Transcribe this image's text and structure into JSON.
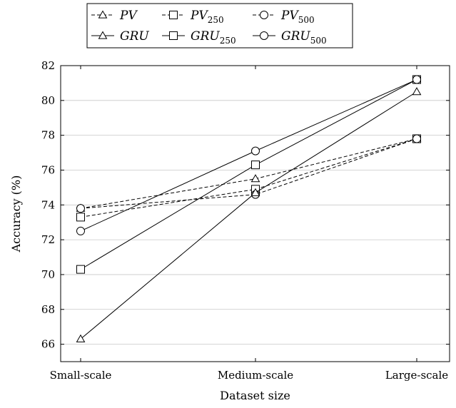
{
  "chart_data": {
    "type": "line",
    "title": "",
    "xlabel": "Dataset size",
    "ylabel": "Accuracy (%)",
    "categories": [
      "Small-scale",
      "Medium-scale",
      "Large-scale"
    ],
    "ylim": [
      65,
      82
    ],
    "yticks": [
      66,
      68,
      70,
      72,
      74,
      76,
      78,
      80,
      82
    ],
    "grid": "horizontal",
    "legend_position": "top",
    "series": [
      {
        "name": "PV",
        "base": "PV",
        "sub": "",
        "marker": "triangle",
        "dashed": true,
        "values": [
          73.8,
          75.5,
          77.8
        ]
      },
      {
        "name": "PV250",
        "base": "PV",
        "sub": "250",
        "marker": "square",
        "dashed": true,
        "values": [
          73.3,
          74.9,
          77.8
        ]
      },
      {
        "name": "PV500",
        "base": "PV",
        "sub": "500",
        "marker": "circle",
        "dashed": true,
        "values": [
          73.8,
          74.6,
          77.8
        ]
      },
      {
        "name": "GRU",
        "base": "GRU",
        "sub": "",
        "marker": "triangle",
        "dashed": false,
        "values": [
          66.3,
          74.7,
          80.5
        ]
      },
      {
        "name": "GRU250",
        "base": "GRU",
        "sub": "250",
        "marker": "square",
        "dashed": false,
        "values": [
          70.3,
          76.3,
          81.2
        ]
      },
      {
        "name": "GRU500",
        "base": "GRU",
        "sub": "500",
        "marker": "circle",
        "dashed": false,
        "values": [
          72.5,
          77.1,
          81.2
        ]
      }
    ]
  }
}
